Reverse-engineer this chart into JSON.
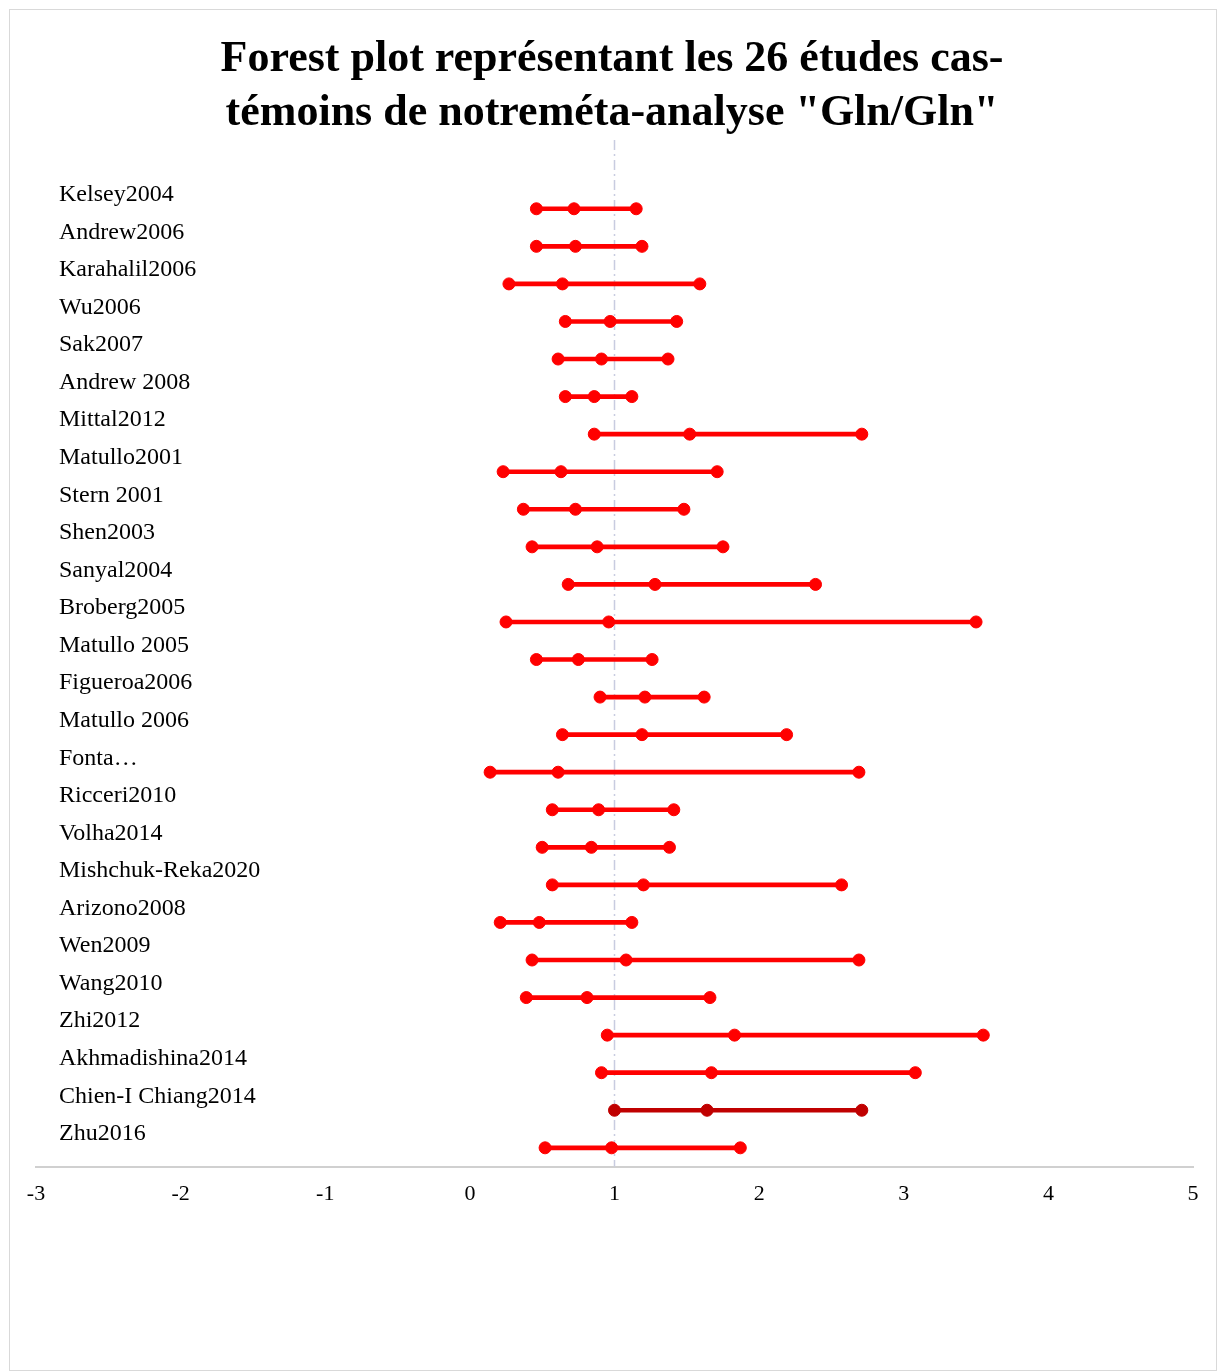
{
  "chart_data": {
    "type": "bar",
    "orientation": "horizontal",
    "marker": "circle",
    "title": "Forest plot représentant les 26 études cas-témoins de notreméta-analyse \"Gln/Gln\"",
    "categories": [
      "Kelsey2004",
      "Andrew2006",
      "Karahalil2006",
      "Wu2006",
      "Sak2007",
      "Andrew 2008",
      "Mittal2012",
      "Matullo2001",
      "Stern 2001",
      "Shen2003",
      "Sanyal2004",
      "Broberg2005",
      "Matullo 2005",
      "Figueroa2006",
      "Matullo 2006",
      "Fonta…",
      "Ricceri2010",
      "Volha2014",
      "Mishchuk-Reka2020",
      "Arizono2008",
      "Wen2009",
      "Wang2010",
      "Zhi2012",
      "Akhmadishina2014",
      "Chien-I Chiang2014",
      "Zhu2016"
    ],
    "series": [
      {
        "base": [
          0.46,
          0.46,
          0.27,
          0.66,
          0.61,
          0.66,
          0.86,
          0.23,
          0.37,
          0.43,
          0.68,
          0.25,
          0.46,
          0.9,
          0.64,
          0.14,
          0.57,
          0.5,
          0.57,
          0.21,
          0.43,
          0.39,
          0.95,
          0.91,
          1.0,
          0.52
        ],
        "values": [
          0.69,
          0.73,
          1.32,
          0.77,
          0.76,
          0.46,
          1.85,
          1.48,
          1.11,
          1.32,
          1.71,
          3.25,
          0.8,
          0.72,
          1.55,
          2.55,
          0.84,
          0.88,
          2.0,
          0.91,
          2.26,
          1.27,
          2.6,
          2.17,
          1.71,
          1.35
        ],
        "colors": [
          "#ff0000",
          "#ff0000",
          "#ff0000",
          "#ff0000",
          "#ff0000",
          "#ff0000",
          "#ff0000",
          "#ff0000",
          "#ff0000",
          "#ff0000",
          "#ff0000",
          "#ff0000",
          "#ff0000",
          "#ff0000",
          "#ff0000",
          "#ff0000",
          "#ff0000",
          "#ff0000",
          "#ff0000",
          "#ff0000",
          "#ff0000",
          "#ff0000",
          "#ff0000",
          "#ff0000",
          "#c00000",
          "#ff0000"
        ]
      },
      {
        "type": "scatter",
        "values": [
          0.46,
          0.46,
          0.27,
          0.66,
          0.61,
          0.66,
          0.86,
          0.23,
          0.37,
          0.43,
          0.68,
          0.25,
          0.46,
          0.9,
          0.64,
          0.14,
          0.57,
          0.5,
          0.57,
          0.21,
          0.43,
          0.39,
          0.95,
          0.91,
          1.0,
          0.52
        ],
        "colors": [
          "#ff0000",
          "#ff0000",
          "#ff0000",
          "#ff0000",
          "#ff0000",
          "#ff0000",
          "#ff0000",
          "#ff0000",
          "#ff0000",
          "#ff0000",
          "#ff0000",
          "#ff0000",
          "#ff0000",
          "#ff0000",
          "#ff0000",
          "#ff0000",
          "#ff0000",
          "#ff0000",
          "#ff0000",
          "#ff0000",
          "#ff0000",
          "#ff0000",
          "#ff0000",
          "#ff0000",
          "#c00000",
          "#ff0000"
        ]
      },
      {
        "type": "scatter",
        "values": [
          0.72,
          0.73,
          0.64,
          0.97,
          0.91,
          0.86,
          1.52,
          0.63,
          0.73,
          0.88,
          1.28,
          0.96,
          0.75,
          1.21,
          1.19,
          0.61,
          0.89,
          0.84,
          1.2,
          0.48,
          1.08,
          0.81,
          1.83,
          1.67,
          1.64,
          0.98
        ],
        "colors": [
          "#ff0000",
          "#ff0000",
          "#ff0000",
          "#ff0000",
          "#ff0000",
          "#ff0000",
          "#ff0000",
          "#ff0000",
          "#ff0000",
          "#ff0000",
          "#ff0000",
          "#ff0000",
          "#ff0000",
          "#ff0000",
          "#ff0000",
          "#ff0000",
          "#ff0000",
          "#ff0000",
          "#ff0000",
          "#ff0000",
          "#ff0000",
          "#ff0000",
          "#ff0000",
          "#ff0000",
          "#c00000",
          "#ff0000"
        ]
      },
      {
        "type": "scatter",
        "values": [
          1.15,
          1.19,
          1.59,
          1.43,
          1.37,
          1.12,
          2.71,
          1.71,
          1.48,
          1.75,
          2.39,
          3.5,
          1.26,
          1.62,
          2.19,
          2.69,
          1.41,
          1.38,
          2.57,
          1.12,
          2.69,
          1.66,
          3.55,
          3.08,
          2.71,
          1.87
        ],
        "colors": [
          "#ff0000",
          "#ff0000",
          "#ff0000",
          "#ff0000",
          "#ff0000",
          "#ff0000",
          "#ff0000",
          "#ff0000",
          "#ff0000",
          "#ff0000",
          "#ff0000",
          "#ff0000",
          "#ff0000",
          "#ff0000",
          "#ff0000",
          "#ff0000",
          "#ff0000",
          "#ff0000",
          "#ff0000",
          "#ff0000",
          "#ff0000",
          "#ff0000",
          "#ff0000",
          "#ff0000",
          "#c00000",
          "#ff0000"
        ]
      }
    ],
    "xlim": [
      -3,
      5
    ],
    "xticks": [
      -3,
      -2,
      -1,
      0,
      1,
      2,
      3,
      4,
      5
    ],
    "ref_lines": [
      {
        "axis": "x",
        "value": 1,
        "color": "#c8cce0",
        "line_style": "dashdot"
      }
    ]
  }
}
